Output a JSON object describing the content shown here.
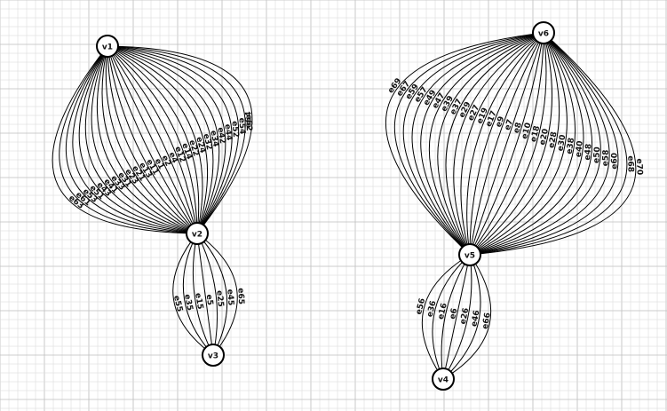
{
  "diagram": {
    "type": "multigraph",
    "background": {
      "grid_color": "#d6d6d6",
      "grid_major_color": "#bdbdbd",
      "paper_color": "#ffffff"
    },
    "nodes": [
      {
        "id": "v1",
        "label": "v1"
      },
      {
        "id": "v2",
        "label": "v2"
      },
      {
        "id": "v3",
        "label": "v3"
      },
      {
        "id": "v4",
        "label": "v4"
      },
      {
        "id": "v5",
        "label": "v5"
      },
      {
        "id": "v6",
        "label": "v6"
      }
    ],
    "edge_groups": [
      {
        "id": "g-v1-v2",
        "source": "v1",
        "target": "v2",
        "labels": [
          "e64",
          "e62",
          "e54",
          "e52",
          "e44",
          "e42",
          "e34",
          "e32",
          "e24",
          "e22",
          "e14",
          "e12",
          "e4",
          "e2",
          "e1",
          "e11",
          "e13",
          "e21",
          "e23",
          "e31",
          "e33",
          "e41",
          "e43",
          "e51",
          "e53",
          "e61",
          "e63"
        ]
      },
      {
        "id": "g-v2-v3",
        "source": "v2",
        "target": "v3",
        "labels": [
          "e65",
          "e45",
          "e25",
          "e5",
          "e15",
          "e35",
          "e55"
        ]
      },
      {
        "id": "g-v6-v5",
        "source": "v6",
        "target": "v5",
        "labels": [
          "e70",
          "e68",
          "e60",
          "e58",
          "e50",
          "e48",
          "e40",
          "e38",
          "e30",
          "e28",
          "e20",
          "e18",
          "e10",
          "e8",
          "e7",
          "e9",
          "e17",
          "e19",
          "e27",
          "e29",
          "e37",
          "e39",
          "e47",
          "e49",
          "e57",
          "e59",
          "e67",
          "e69"
        ]
      },
      {
        "id": "g-v5-v4",
        "source": "v5",
        "target": "v4",
        "labels": [
          "e66",
          "e46",
          "e26",
          "e6",
          "e16",
          "e36",
          "e56"
        ]
      }
    ],
    "colors": {
      "edge": "#000000",
      "node_fill": "#ffffff",
      "node_stroke": "#000000",
      "text": "#111111"
    }
  }
}
